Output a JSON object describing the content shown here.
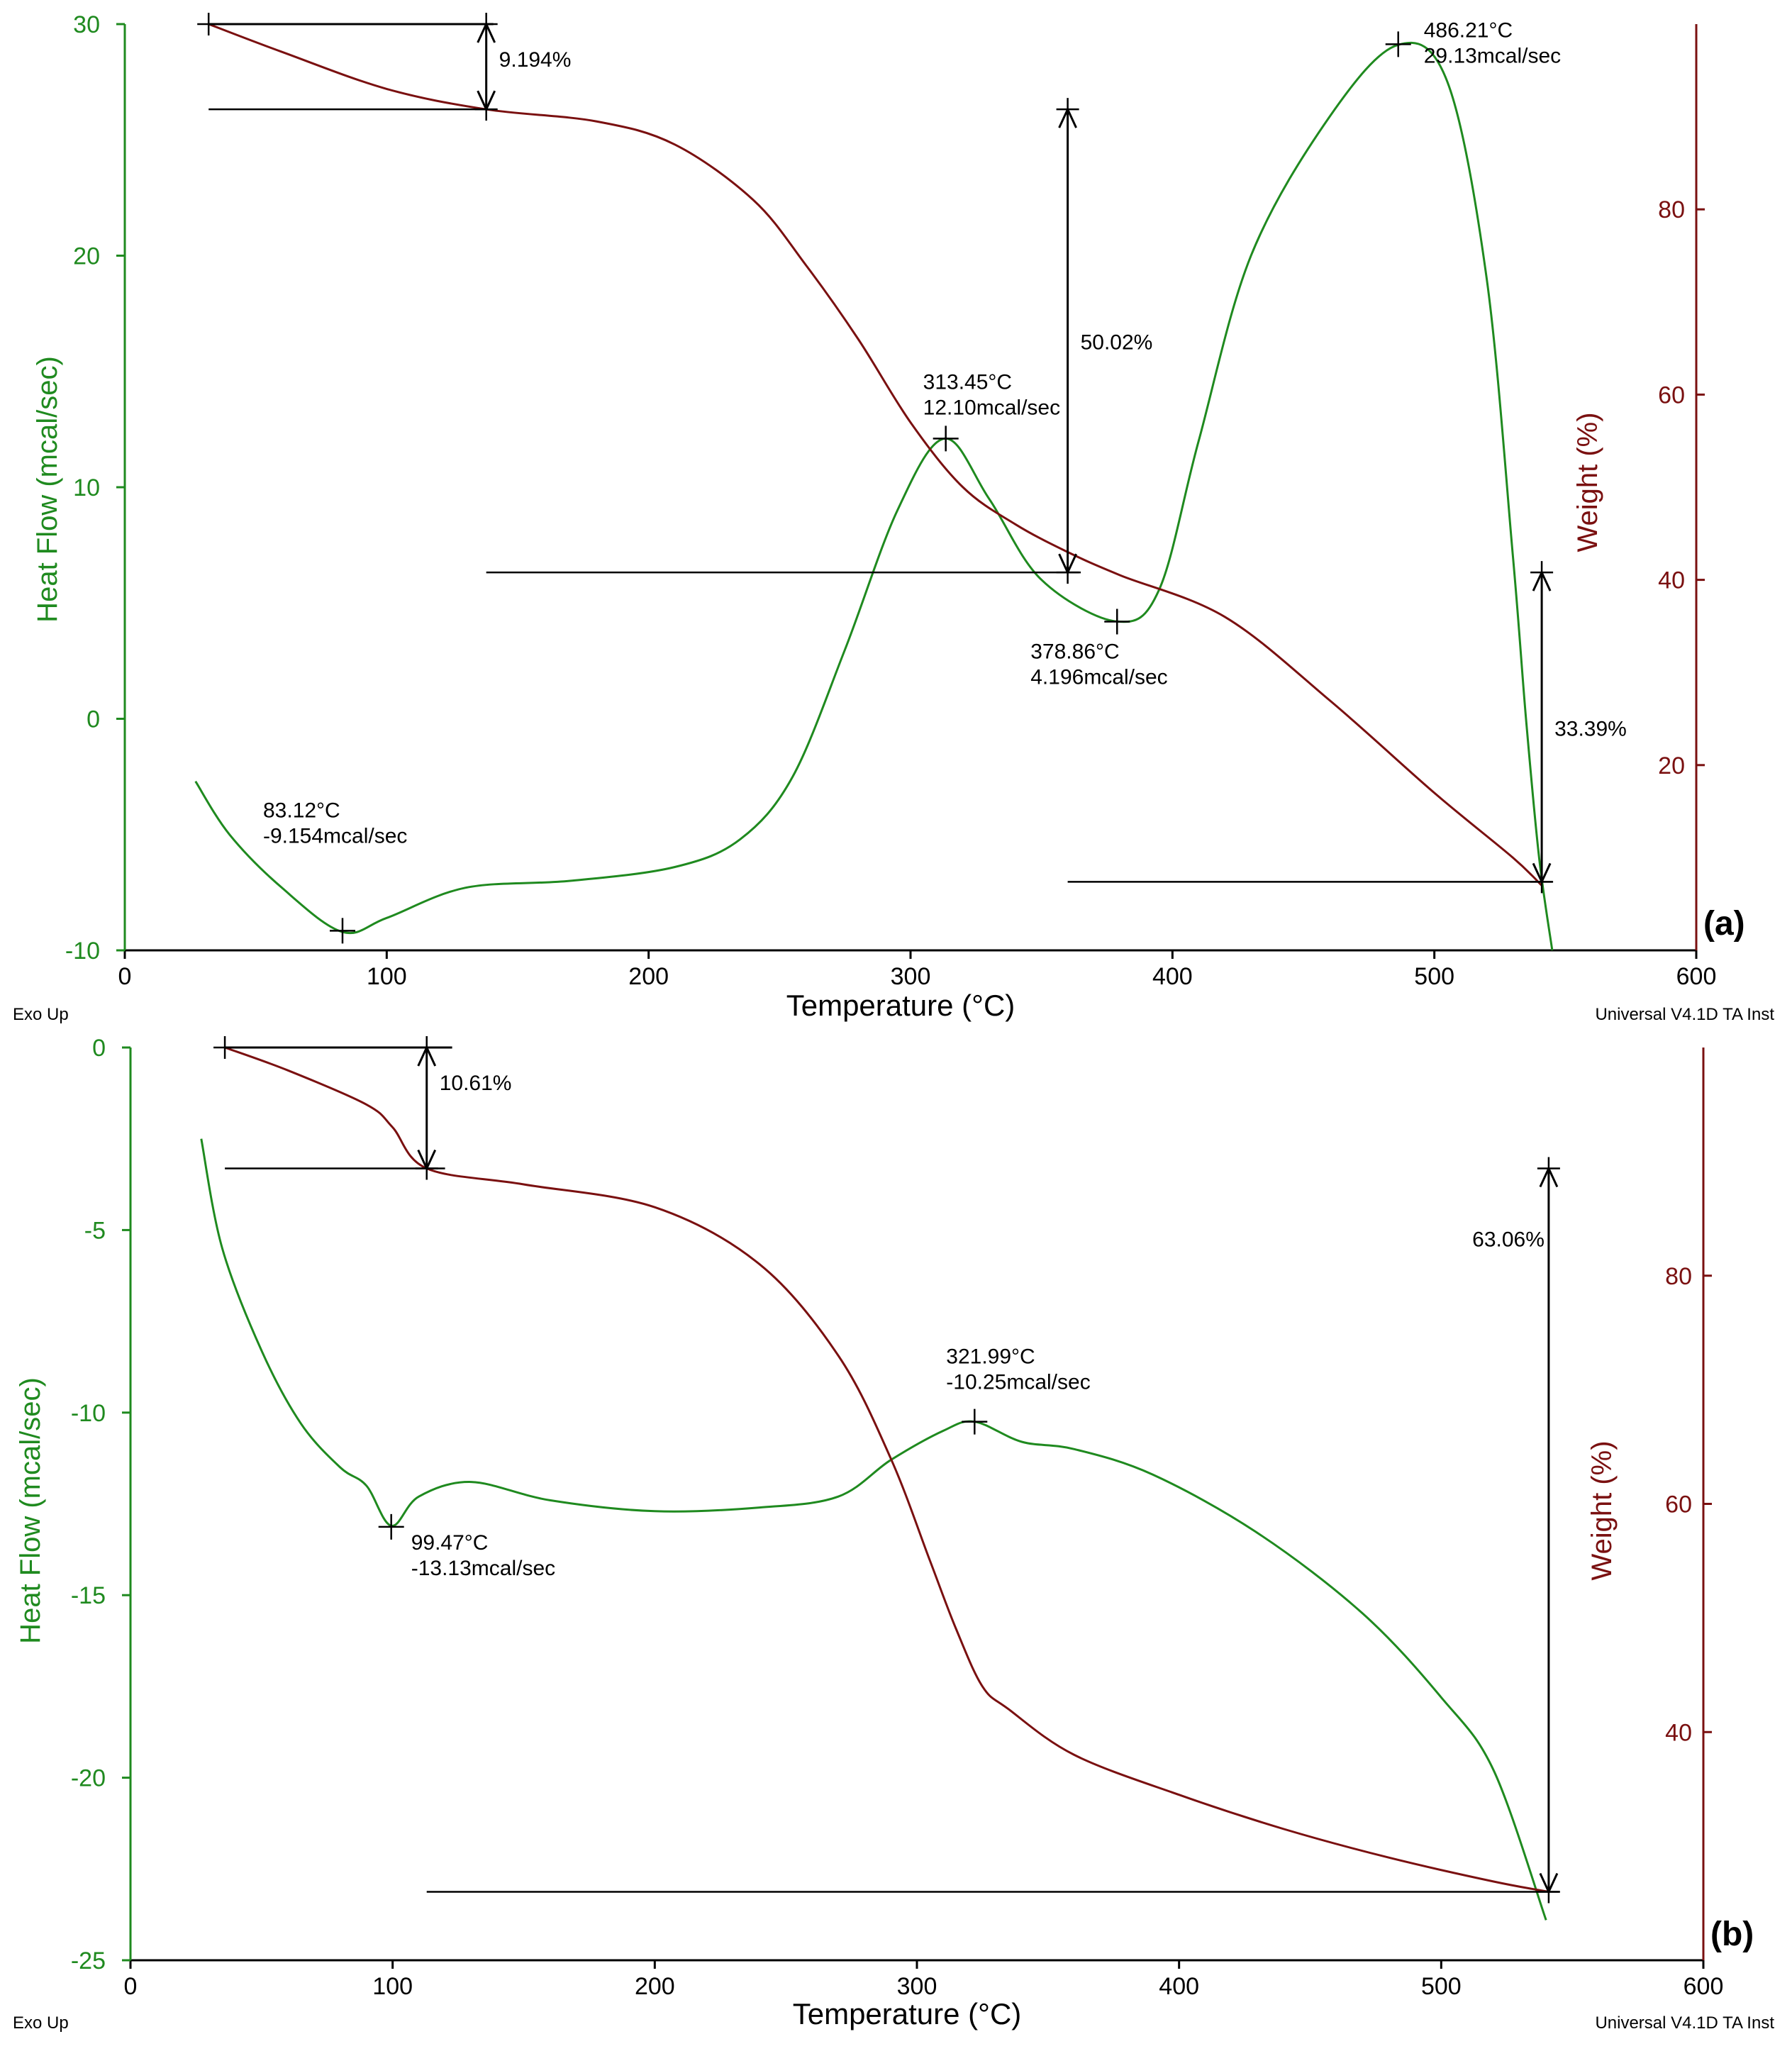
{
  "colors": {
    "heat": "#1f8a1f",
    "weight": "#7a1010",
    "ink": "#000000"
  },
  "chart_data": [
    {
      "type": "line",
      "panel_label": "(a)",
      "xlabel": "Temperature (°C)",
      "ylabel_left": "Heat Flow (mcal/sec)",
      "ylabel_right": "Weight (%)",
      "footer_left": "Exo Up",
      "footer_right": "Universal V4.1D TA Inst",
      "xlim": [
        0,
        600
      ],
      "ylim_left": [
        -10,
        30
      ],
      "ylim_right": [
        0,
        100
      ],
      "x_ticks": [
        0,
        100,
        200,
        300,
        400,
        500,
        600
      ],
      "y_left_ticks": [
        -10,
        0,
        10,
        20,
        30
      ],
      "y_right_ticks": [
        20,
        40,
        60,
        80
      ],
      "series": [
        {
          "name": "Heat Flow",
          "axis": "left",
          "x": [
            27,
            40,
            60,
            83,
            100,
            130,
            170,
            210,
            235,
            255,
            275,
            295,
            313,
            330,
            350,
            379,
            395,
            410,
            430,
            460,
            486,
            505,
            520,
            530,
            535,
            540,
            545
          ],
          "y": [
            -2.7,
            -5,
            -7.3,
            -9.2,
            -8.6,
            -7.3,
            -7,
            -6.4,
            -5.2,
            -2.5,
            3,
            9,
            12.1,
            9.5,
            6,
            4.2,
            5.6,
            12,
            20,
            26,
            29.1,
            27.5,
            19,
            7,
            0,
            -6,
            -10
          ]
        },
        {
          "name": "Weight",
          "axis": "right",
          "x": [
            32,
            60,
            100,
            138,
            180,
            210,
            240,
            260,
            280,
            300,
            320,
            340,
            360,
            380,
            420,
            460,
            500,
            530,
            541
          ],
          "y": [
            100,
            97,
            93,
            90.8,
            89.5,
            87,
            81,
            74,
            66,
            57,
            50,
            46,
            43,
            40.5,
            36,
            27,
            17,
            10,
            7
          ]
        }
      ],
      "annotations": [
        {
          "x": 83.12,
          "y": -9.154,
          "lines": [
            "83.12°C",
            "-9.154mcal/sec"
          ]
        },
        {
          "x": 313.45,
          "y": 12.1,
          "lines": [
            "313.45°C",
            "12.10mcal/sec"
          ]
        },
        {
          "x": 378.86,
          "y": 4.196,
          "lines": [
            "378.86°C",
            "4.196mcal/sec"
          ]
        },
        {
          "x": 486.21,
          "y": 29.13,
          "lines": [
            "486.21°C",
            "29.13mcal/sec"
          ]
        }
      ],
      "steps": [
        {
          "label": "9.194%",
          "x": 138,
          "from": 100,
          "to": 90.8,
          "line_from": 32,
          "line_to": 138
        },
        {
          "label": "50.02%",
          "x": 360,
          "from": 90.8,
          "to": 40.8,
          "line_from": 138,
          "line_to": 365
        },
        {
          "label": "33.39%",
          "x": 541,
          "from": 40.8,
          "to": 7.4,
          "line_from": 360,
          "line_to": 545
        }
      ]
    },
    {
      "type": "line",
      "panel_label": "(b)",
      "xlabel": "Temperature (°C)",
      "ylabel_left": "Heat Flow (mcal/sec)",
      "ylabel_right": "Weight (%)",
      "footer_left": "Exo Up",
      "footer_right": "Universal V4.1D TA Inst",
      "xlim": [
        0,
        600
      ],
      "ylim_left": [
        -25,
        0
      ],
      "ylim_right": [
        20,
        100
      ],
      "x_ticks": [
        0,
        100,
        200,
        300,
        400,
        500,
        600
      ],
      "y_left_ticks": [
        -25,
        -20,
        -15,
        -10,
        -5,
        0
      ],
      "y_right_ticks": [
        40,
        60,
        80
      ],
      "series": [
        {
          "name": "Heat Flow",
          "axis": "left",
          "x": [
            27,
            35,
            50,
            65,
            80,
            90,
            99.5,
            110,
            130,
            160,
            200,
            240,
            270,
            290,
            310,
            322,
            340,
            360,
            390,
            430,
            470,
            500,
            520,
            540
          ],
          "y": [
            -2.5,
            -5.5,
            -8.3,
            -10.3,
            -11.5,
            -12,
            -13.1,
            -12.3,
            -11.9,
            -12.4,
            -12.7,
            -12.6,
            -12.3,
            -11.3,
            -10.5,
            -10.25,
            -10.8,
            -11,
            -11.7,
            -13.3,
            -15.5,
            -17.8,
            -19.8,
            -23.9
          ]
        },
        {
          "name": "Weight",
          "axis": "right",
          "x": [
            36,
            60,
            90,
            100,
            113,
            150,
            200,
            240,
            270,
            290,
            305,
            315,
            325,
            335,
            360,
            400,
            440,
            480,
            520,
            541
          ],
          "y": [
            100,
            98,
            95,
            93,
            89.4,
            88,
            86,
            81,
            73,
            64,
            55,
            49,
            44,
            42,
            38,
            34.5,
            31.5,
            29,
            26.9,
            26
          ]
        }
      ],
      "annotations": [
        {
          "x": 99.47,
          "y": -13.13,
          "lines": [
            "99.47°C",
            "-13.13mcal/sec"
          ]
        },
        {
          "x": 321.99,
          "y": -10.25,
          "lines": [
            "321.99°C",
            "-10.25mcal/sec"
          ]
        }
      ],
      "steps": [
        {
          "label": "10.61%",
          "x": 113,
          "from": 100,
          "to": 89.4,
          "line_from": 36,
          "line_to": 120
        },
        {
          "label": "63.06%",
          "x": 541,
          "from": 89.4,
          "to": 26,
          "line_from": 113,
          "line_to": 545
        }
      ]
    }
  ]
}
